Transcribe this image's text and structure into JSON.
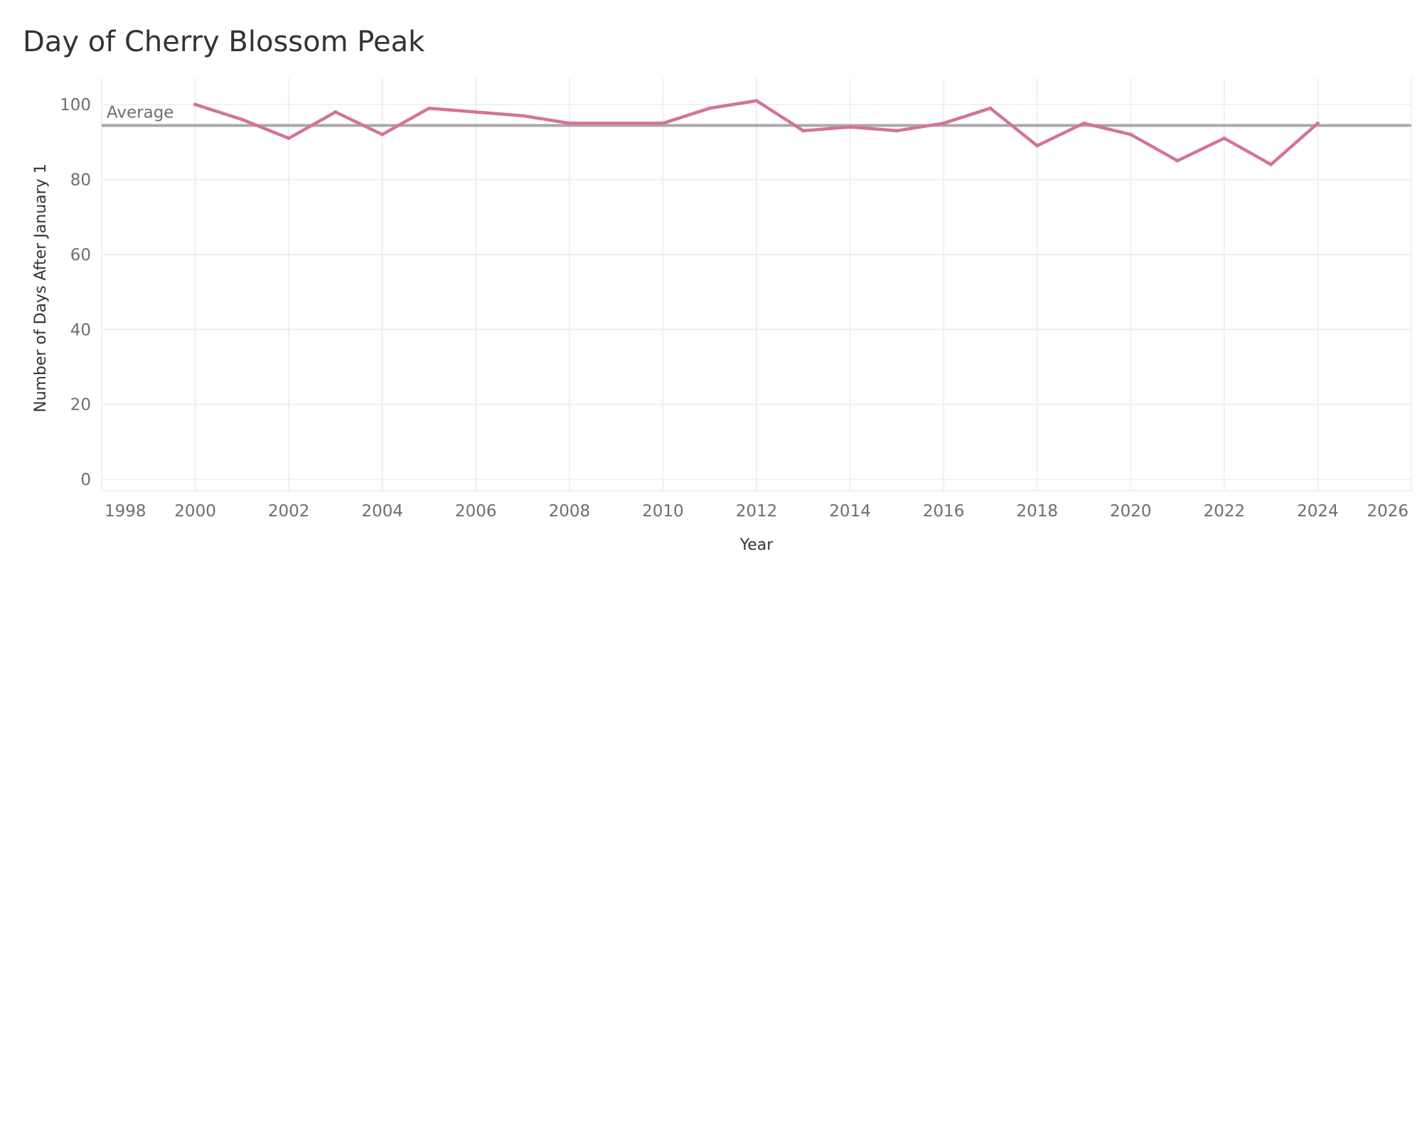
{
  "chart_data": {
    "type": "line",
    "title": "Day of Cherry Blossom Peak",
    "xlabel": "Year",
    "ylabel": "Number of Days After January 1",
    "xlim": [
      1998,
      2026
    ],
    "ylim": [
      -3,
      107
    ],
    "x_ticks": [
      1998,
      2000,
      2002,
      2004,
      2006,
      2008,
      2010,
      2012,
      2014,
      2016,
      2018,
      2020,
      2022,
      2024,
      2026
    ],
    "y_ticks": [
      0,
      20,
      40,
      60,
      80,
      100
    ],
    "x_tick_labels": [
      "1998",
      "2000",
      "2002",
      "2004",
      "2006",
      "2008",
      "2010",
      "2012",
      "2014",
      "2016",
      "2018",
      "2020",
      "2022",
      "2024",
      "2026"
    ],
    "y_tick_labels": [
      "0",
      "20",
      "40",
      "60",
      "80",
      "100"
    ],
    "grid": true,
    "series": [
      {
        "x": [
          2000,
          2001,
          2002,
          2003,
          2004,
          2005,
          2006,
          2007,
          2008,
          2009,
          2010,
          2011,
          2012,
          2013,
          2014,
          2015,
          2016,
          2017,
          2018,
          2019,
          2020,
          2021,
          2022,
          2023,
          2024
        ],
        "values": [
          100,
          96,
          91,
          98,
          92,
          99,
          98,
          97,
          95,
          95,
          95,
          99,
          101,
          93,
          94,
          93,
          95,
          99,
          89,
          95,
          92,
          85,
          91,
          84,
          95
        ],
        "color": "#d4739a"
      }
    ],
    "reference_line": {
      "label": "Average",
      "value": 94.4,
      "color": "#a9a9a9"
    },
    "colors": {
      "grid": "#f0f0f0",
      "tick_text": "#6e6e6e",
      "axis_label": "#333333"
    }
  }
}
